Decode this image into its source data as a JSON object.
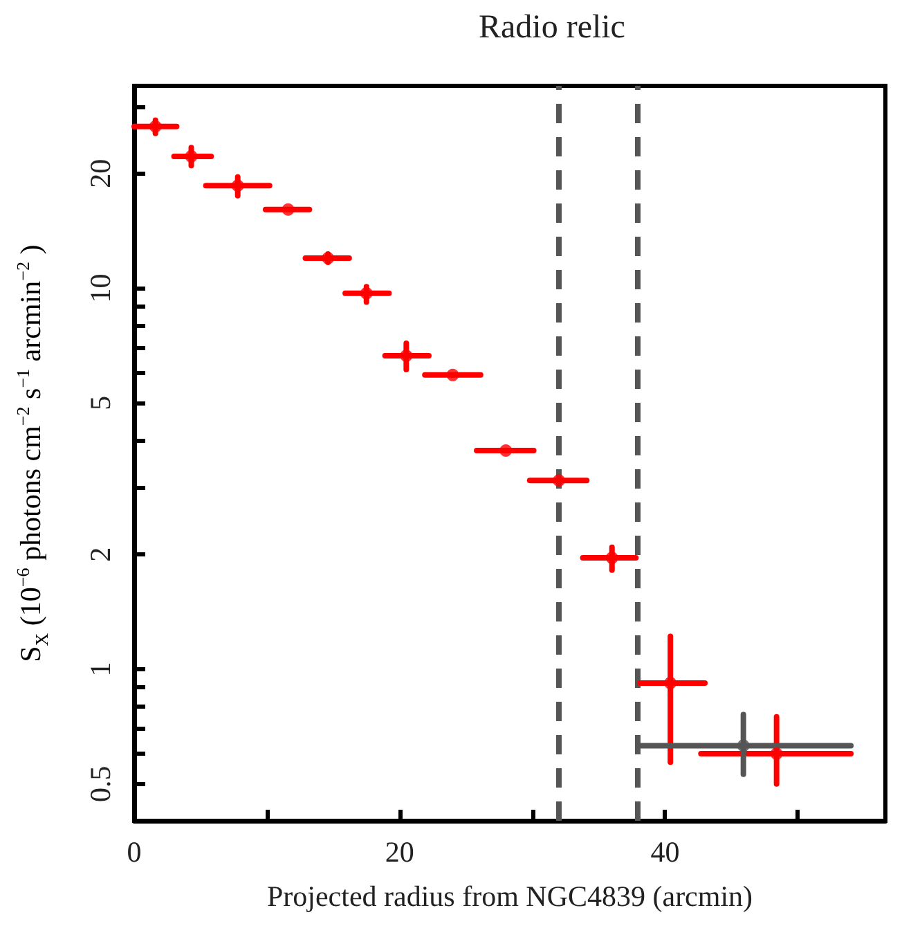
{
  "chart_data": {
    "type": "scatter",
    "xlabel": "Projected radius from NGC4839 (arcmin)",
    "ylabel": "S$_{X}$  (10$^{−6}$ photons cm$^{−2}$ s$^{−1}$  arcmin$^{−2}$ )",
    "annotations": [
      "Radio relic"
    ],
    "series": [
      {
        "color": "#ff0000",
        "x": [
          1.6,
          4.3,
          7.8,
          11.6,
          14.6,
          17.5,
          20.5,
          24.0,
          28.0,
          32.0,
          36.0,
          40.4,
          48.4
        ],
        "values": [
          26.6,
          22.2,
          18.6,
          16.1,
          12.0,
          9.7,
          6.65,
          5.92,
          3.75,
          3.13,
          1.96,
          0.92,
          0.6
        ],
        "xerrors": [
          [
            0,
            3.2
          ],
          [
            3.0,
            5.8
          ],
          [
            5.4,
            10.2
          ],
          [
            9.9,
            13.2
          ],
          [
            12.9,
            16.2
          ],
          [
            15.9,
            19.2
          ],
          [
            18.9,
            22.2
          ],
          [
            21.9,
            26.1
          ],
          [
            25.8,
            30.1
          ],
          [
            29.8,
            34.1
          ],
          [
            33.8,
            37.8
          ],
          [
            38.1,
            43.0
          ],
          [
            42.7,
            54.0
          ]
        ],
        "errors": [
          [
            25.5,
            27.6
          ],
          [
            21.0,
            23.4
          ],
          [
            17.5,
            19.6
          ],
          null,
          [
            11.7,
            12.3
          ],
          [
            9.2,
            10.1
          ],
          [
            6.12,
            7.17
          ],
          null,
          null,
          null,
          [
            1.82,
            2.09
          ],
          [
            0.57,
            1.22
          ],
          [
            0.5,
            0.75
          ]
        ]
      },
      {
        "color": "#555555",
        "x": [
          45.9
        ],
        "values": [
          0.63
        ],
        "xerrors": [
          [
            38.0,
            54.0
          ]
        ],
        "errors": [
          [
            0.53,
            0.76
          ]
        ]
      }
    ],
    "ref_lines": [
      {
        "axis": "x",
        "value": 32.0,
        "color": "#555555",
        "line_style": "dashed"
      },
      {
        "axis": "x",
        "value": 37.9,
        "color": "#555555",
        "line_style": "dashed"
      }
    ],
    "marker": "circle",
    "log": "y",
    "grid": false,
    "xlim": [
      0,
      56.6
    ],
    "xticks": [
      0,
      {
        "value": 10,
        "label": null
      },
      20,
      {
        "value": 30,
        "label": null
      },
      40,
      {
        "value": 50,
        "label": null
      }
    ],
    "ylim": [
      0.4,
      34
    ],
    "yticks": [
      {
        "value": 0.4,
        "label": null
      },
      0.5,
      {
        "value": 0.6,
        "label": null
      },
      {
        "value": 0.7,
        "label": null
      },
      {
        "value": 0.8,
        "label": null
      },
      {
        "value": 0.9,
        "label": null
      },
      1,
      2,
      {
        "value": 3,
        "label": null
      },
      {
        "value": 4,
        "label": null
      },
      5,
      {
        "value": 6,
        "label": null
      },
      {
        "value": 7,
        "label": null
      },
      {
        "value": 8,
        "label": null
      },
      {
        "value": 9,
        "label": null
      },
      10,
      20,
      {
        "value": 30,
        "label": null
      }
    ]
  }
}
